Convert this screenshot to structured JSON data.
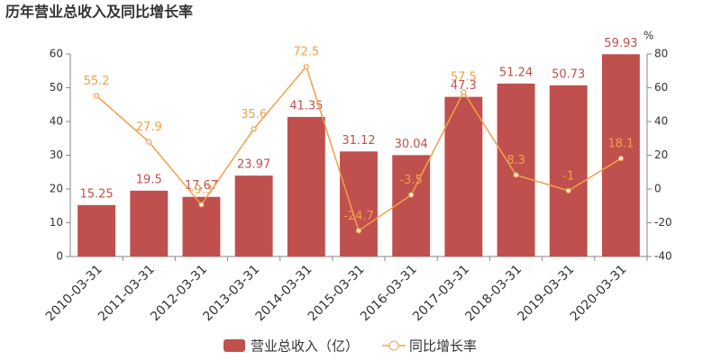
{
  "chart_data": {
    "type": "combo",
    "title": "历年营业总收入及同比增长率",
    "categories": [
      "2010-03-31",
      "2011-03-31",
      "2012-03-31",
      "2013-03-31",
      "2014-03-31",
      "2015-03-31",
      "2016-03-31",
      "2017-03-31",
      "2018-03-31",
      "2019-03-31",
      "2020-03-31"
    ],
    "series": [
      {
        "name": "营业总收入（亿）",
        "type": "bar",
        "color": "#c0504d",
        "values": [
          15.25,
          19.5,
          17.67,
          23.97,
          41.35,
          31.12,
          30.04,
          47.3,
          51.24,
          50.73,
          59.93
        ]
      },
      {
        "name": "同比增长率",
        "type": "line",
        "axis": "y2",
        "color": "#f0a04b",
        "values": [
          55.2,
          27.9,
          -9.3,
          35.6,
          72.5,
          -24.7,
          -3.5,
          57.5,
          8.3,
          -1,
          18.1
        ]
      }
    ],
    "ylim": [
      0,
      60
    ],
    "yticks": [
      0,
      10,
      20,
      30,
      40,
      50,
      60
    ],
    "y2lim": [
      -40,
      80
    ],
    "y2ticks": [
      -40,
      -20,
      0,
      20,
      40,
      60,
      80
    ],
    "y2_label": "%",
    "grid": false
  }
}
